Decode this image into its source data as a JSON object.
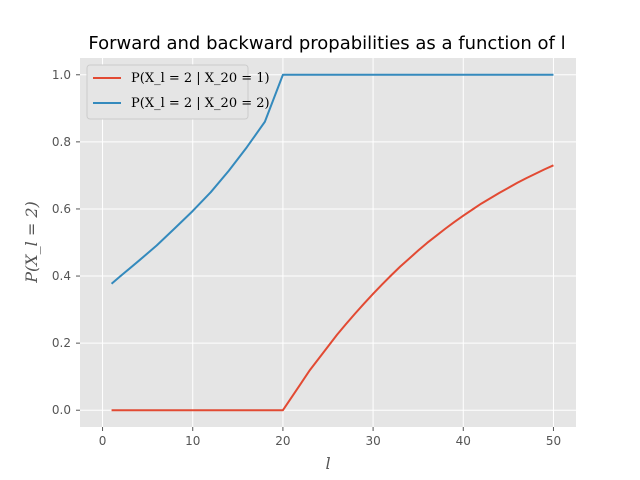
{
  "chart_data": {
    "type": "line",
    "title": "Forward and backward propabilities as a function of l",
    "xlabel": "l",
    "ylabel": "P(X_l = 2)",
    "xlim": [
      -2.5,
      52.5
    ],
    "ylim": [
      -0.05,
      1.05
    ],
    "xticks": [
      0,
      10,
      20,
      30,
      40,
      50
    ],
    "yticks": [
      0.0,
      0.2,
      0.4,
      0.6,
      0.8,
      1.0
    ],
    "grid": true,
    "legend": "top-left",
    "series": [
      {
        "name": "P(X_l = 2 | X_20 = 1)",
        "color": "#E24A33",
        "x": [
          1,
          5,
          10,
          15,
          20,
          21,
          22,
          23,
          24,
          25,
          26,
          27,
          28,
          29,
          30,
          31,
          32,
          33,
          34,
          35,
          36,
          37,
          38,
          39,
          40,
          41,
          42,
          43,
          44,
          45,
          46,
          47,
          48,
          49,
          50
        ],
        "y": [
          0.0,
          0.0,
          0.0,
          0.0,
          0.0,
          0.04,
          0.08,
          0.12,
          0.155,
          0.19,
          0.225,
          0.257,
          0.288,
          0.318,
          0.347,
          0.375,
          0.402,
          0.428,
          0.452,
          0.476,
          0.499,
          0.52,
          0.541,
          0.561,
          0.58,
          0.598,
          0.616,
          0.632,
          0.648,
          0.663,
          0.678,
          0.692,
          0.705,
          0.718,
          0.73
        ]
      },
      {
        "name": "P(X_l = 2 | X_20 = 2)",
        "color": "#348ABD",
        "x": [
          1,
          2,
          4,
          6,
          8,
          10,
          12,
          14,
          16,
          18,
          20,
          50
        ],
        "y": [
          0.377,
          0.4,
          0.445,
          0.491,
          0.542,
          0.594,
          0.65,
          0.714,
          0.784,
          0.86,
          1.0,
          1.0
        ]
      }
    ]
  }
}
